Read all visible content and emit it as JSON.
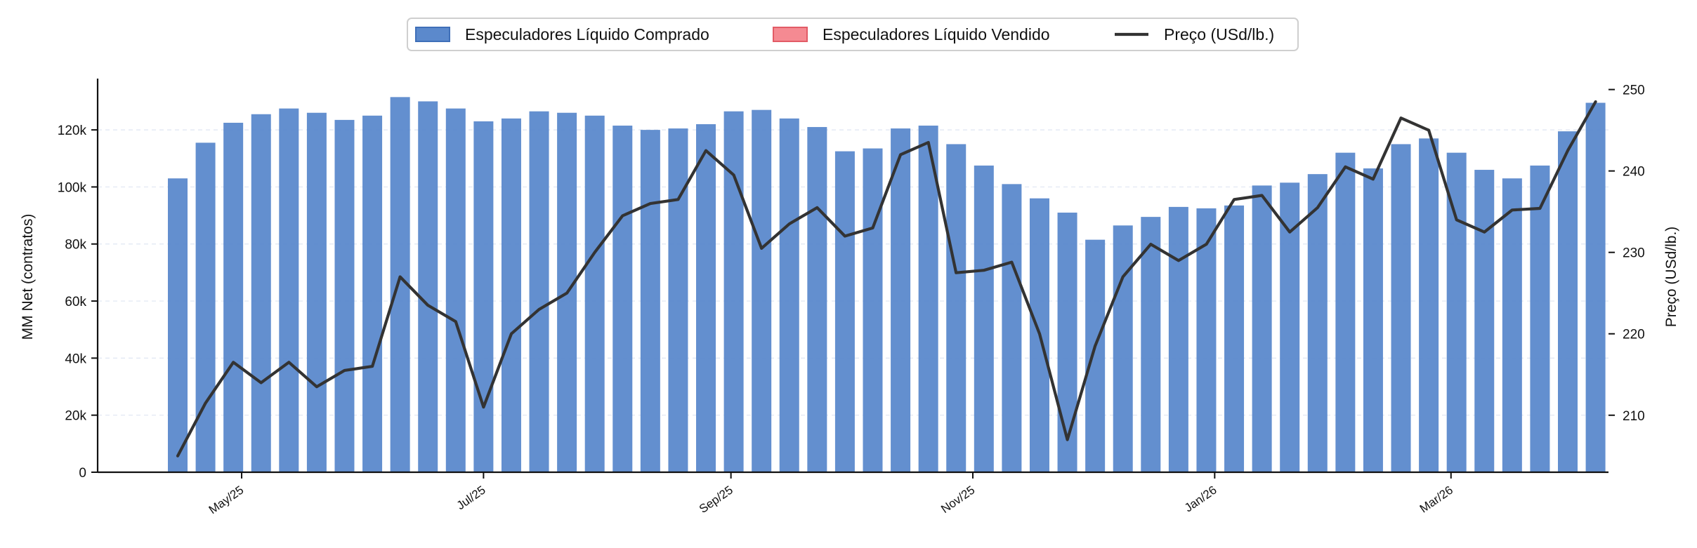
{
  "chart_data": {
    "type": "bar",
    "legend": {
      "position": "top-center",
      "entries": [
        {
          "label": "Especuladores Líquido Comprado",
          "kind": "bar",
          "color": "#5b89cc",
          "edge": "#3f6fb8"
        },
        {
          "label": "Especuladores Líquido Vendido",
          "kind": "bar",
          "color": "#f58a92",
          "edge": "#e25b66"
        },
        {
          "label": "Preço (USd/lb.)",
          "kind": "line",
          "color": "#333333"
        }
      ]
    },
    "y_left": {
      "label": "MM Net (contratos)",
      "lim": [
        0,
        137000
      ],
      "ticks": [
        0,
        20000,
        40000,
        60000,
        80000,
        100000,
        120000
      ],
      "tick_labels": [
        "0",
        "20k",
        "40k",
        "60k",
        "80k",
        "100k",
        "120k"
      ]
    },
    "y_right": {
      "label": "Preço (USd/lb.)",
      "lim": [
        203,
        251
      ],
      "ticks": [
        210,
        220,
        230,
        240,
        250
      ],
      "tick_labels": [
        "210",
        "220",
        "230",
        "240",
        "250"
      ]
    },
    "x": {
      "tick_labels": [
        "May/25",
        "Jul/25",
        "Sep/25",
        "Nov/25",
        "Jan/26",
        "Mar/26"
      ],
      "tick_positions": [
        2.3,
        11.0,
        19.9,
        28.6,
        37.3,
        45.8
      ]
    },
    "grid": "horizontal dashed (faint)",
    "series": [
      {
        "name": "Especuladores Líquido Comprado",
        "type": "bar",
        "color": "#5b89cc",
        "values": [
          103000,
          115500,
          122500,
          125500,
          127500,
          126000,
          123500,
          125000,
          131500,
          130000,
          127500,
          123000,
          124000,
          126500,
          126000,
          125000,
          121500,
          120000,
          120500,
          122000,
          126500,
          127000,
          124000,
          121000,
          112500,
          113500,
          120500,
          121500,
          115000,
          107500,
          101000,
          96000,
          91000,
          81500,
          86500,
          89500,
          93000,
          92500,
          93500,
          100500,
          101500,
          104500,
          112000,
          106500,
          115000,
          117000,
          112000,
          106000,
          103000,
          107500,
          119500,
          129500
        ]
      },
      {
        "name": "Especuladores Líquido Vendido",
        "type": "bar",
        "color": "#f58a92",
        "values": []
      },
      {
        "name": "Preço (USd/lb.)",
        "type": "line",
        "color": "#333333",
        "values": [
          205,
          211.5,
          216.5,
          214,
          216.5,
          213.5,
          215.5,
          216,
          227,
          223.5,
          221.5,
          211,
          220,
          223,
          225,
          230,
          234.5,
          236,
          236.5,
          242.5,
          239.5,
          230.5,
          233.5,
          235.5,
          232,
          233,
          242,
          243.5,
          227.5,
          227.8,
          228.8,
          220,
          207,
          218.5,
          227,
          231,
          229,
          231,
          236.5,
          237,
          232.5,
          235.5,
          240.5,
          239,
          246.5,
          245,
          234,
          232.5,
          235.2,
          235.4,
          242.5,
          248.5
        ]
      }
    ]
  }
}
